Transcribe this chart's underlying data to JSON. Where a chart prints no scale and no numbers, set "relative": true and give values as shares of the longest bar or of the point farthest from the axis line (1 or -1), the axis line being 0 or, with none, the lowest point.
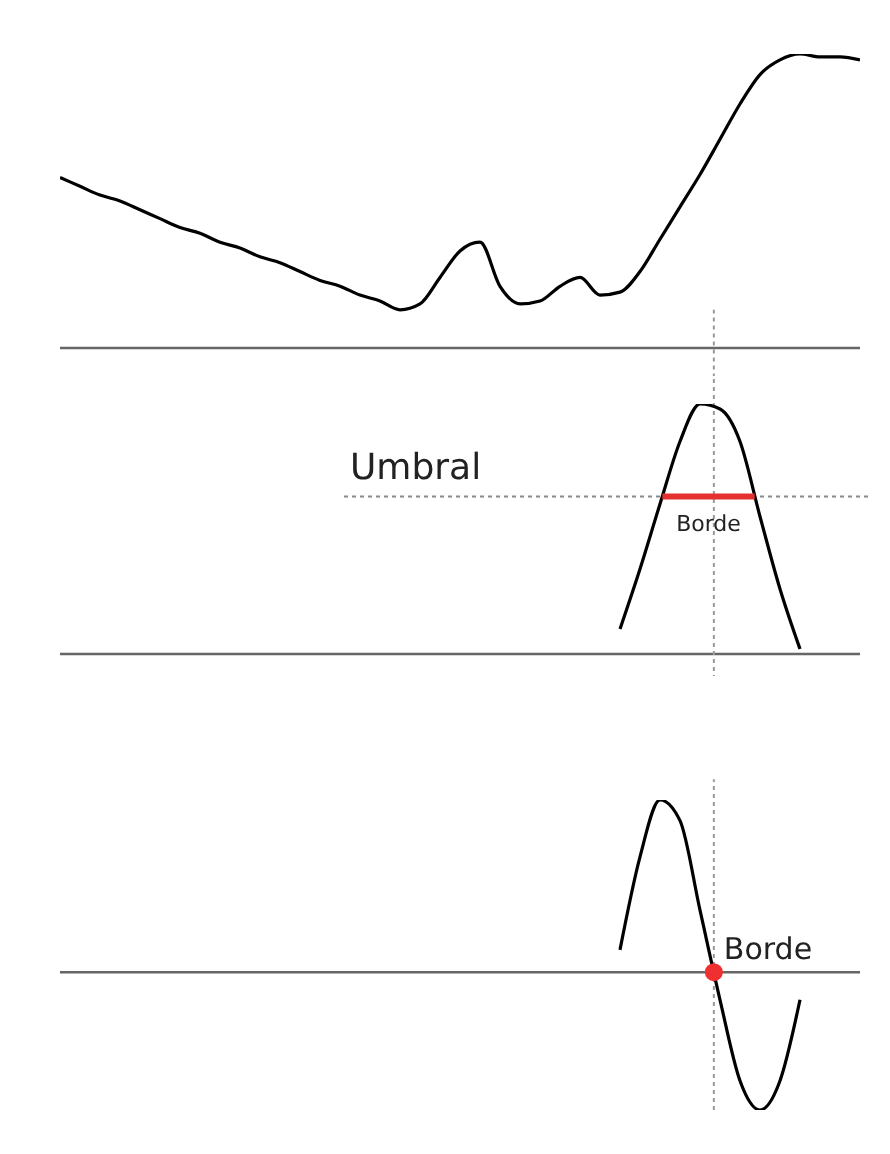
{
  "chart_data": [
    {
      "type": "line",
      "relative": true,
      "marker": "none",
      "categories": [
        null,
        null,
        null,
        null,
        null,
        null,
        null,
        null,
        null,
        null,
        null,
        null,
        null,
        null,
        null,
        null,
        null,
        null,
        null,
        null,
        null,
        null,
        null,
        null,
        null,
        null,
        null,
        null,
        null,
        null,
        null,
        null,
        null,
        null,
        null,
        null,
        null,
        null,
        null,
        null,
        null
      ],
      "series": [
        {
          "color": "#000000",
          "values": [
            0.58,
            0.55,
            0.52,
            0.5,
            0.47,
            0.44,
            0.41,
            0.39,
            0.36,
            0.34,
            0.31,
            0.29,
            0.26,
            0.23,
            0.21,
            0.18,
            0.16,
            0.13,
            0.15,
            0.24,
            0.33,
            0.36,
            0.21,
            0.15,
            0.16,
            0.21,
            0.24,
            0.18,
            0.19,
            0.26,
            0.37,
            0.48,
            0.59,
            0.71,
            0.83,
            0.93,
            0.98,
            1,
            0.99,
            0.99,
            0.98
          ]
        }
      ]
    },
    {
      "type": "line",
      "relative": true,
      "marker": "none",
      "categories": [
        null,
        null,
        null,
        null,
        null,
        null,
        null,
        null,
        null,
        null,
        null,
        null,
        null,
        null,
        null,
        null,
        null,
        null,
        null,
        null,
        null,
        null,
        null,
        null,
        null,
        null,
        null,
        null,
        null,
        null,
        null,
        null,
        null,
        null,
        null,
        null,
        null,
        null,
        null,
        null,
        null
      ],
      "series": [
        {
          "color": "#000000",
          "values": [
            null,
            null,
            null,
            null,
            null,
            null,
            null,
            null,
            null,
            null,
            null,
            null,
            null,
            null,
            null,
            null,
            null,
            null,
            null,
            null,
            null,
            null,
            null,
            null,
            null,
            null,
            null,
            null,
            0.1,
            0.34,
            0.6,
            0.85,
            1,
            0.98,
            0.85,
            0.55,
            0.26,
            0.02,
            null,
            null,
            null
          ]
        }
      ],
      "ref_lines": [
        {
          "axis": "y",
          "value": 0.63,
          "label": "Umbral",
          "line_style": "dotted",
          "color": "#888888"
        }
      ],
      "annotations": [
        {
          "text": "Borde",
          "y": 0.63
        }
      ]
    },
    {
      "type": "line",
      "relative": true,
      "marker": "none",
      "categories": [
        null,
        null,
        null,
        null,
        null,
        null,
        null,
        null,
        null,
        null,
        null,
        null,
        null,
        null,
        null,
        null,
        null,
        null,
        null,
        null,
        null,
        null,
        null,
        null,
        null,
        null,
        null,
        null,
        null,
        null,
        null,
        null,
        null,
        null,
        null,
        null,
        null,
        null,
        null,
        null,
        null
      ],
      "series": [
        {
          "color": "#000000",
          "values": [
            null,
            null,
            null,
            null,
            null,
            null,
            null,
            null,
            null,
            null,
            null,
            null,
            null,
            null,
            null,
            null,
            null,
            null,
            null,
            null,
            null,
            null,
            null,
            null,
            null,
            null,
            null,
            null,
            0.13,
            0.67,
            1,
            0.88,
            0.36,
            -0.16,
            -0.63,
            -0.8,
            -0.63,
            -0.16,
            null,
            null,
            null
          ]
        }
      ],
      "annotations": [
        "Borde"
      ]
    }
  ]
}
